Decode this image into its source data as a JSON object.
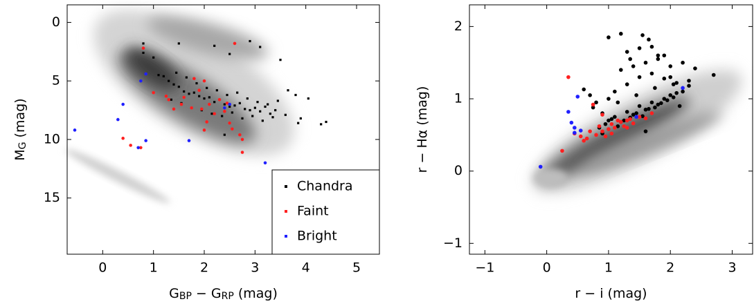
{
  "chart_data": [
    {
      "type": "scatter",
      "xlabel": [
        {
          "text": "G"
        },
        {
          "text": "BP",
          "sub": true
        },
        {
          "text": " − G"
        },
        {
          "text": "RP",
          "sub": true
        },
        {
          "text": " (mag)"
        }
      ],
      "ylabel": [
        {
          "text": "M"
        },
        {
          "text": "G",
          "sub": true
        },
        {
          "text": " (mag)"
        }
      ],
      "xlim": [
        -0.7,
        5.45
      ],
      "ylim": [
        19.8,
        -1.5
      ],
      "xticks": [
        0,
        1,
        2,
        3,
        4,
        5
      ],
      "yticks": [
        0,
        5,
        10,
        15
      ],
      "legend": "lower right",
      "series": [
        {
          "name": "Chandra",
          "color": "#000000",
          "marker": "square",
          "x": [
            0.8,
            0.8,
            1.0,
            1.5,
            2.2,
            2.5,
            2.9,
            3.1,
            3.5,
            3.65,
            3.8,
            3.9,
            3.85,
            4.05,
            4.3,
            4.4,
            1.2,
            1.3,
            1.4,
            1.5,
            1.6,
            1.7,
            1.8,
            1.9,
            2.0,
            2.1,
            2.2,
            2.3,
            2.4,
            2.5,
            2.6,
            2.7,
            2.8,
            2.9,
            3.0,
            3.1,
            3.2,
            3.3,
            3.4,
            1.45,
            1.65,
            1.85,
            2.05,
            2.25,
            2.45,
            2.65,
            2.85,
            3.05,
            3.25,
            3.45,
            1.35,
            1.55,
            1.75,
            1.95,
            2.15,
            2.35,
            2.55,
            2.75,
            2.95,
            3.15,
            3.35,
            1.1,
            3.6,
            2.0,
            2.4
          ],
          "values": [
            1.8,
            2.6,
            3.0,
            1.8,
            2.0,
            2.7,
            1.6,
            2.1,
            3.2,
            5.8,
            6.2,
            8.2,
            8.6,
            6.5,
            8.7,
            8.5,
            4.6,
            5.0,
            5.3,
            5.5,
            5.9,
            6.1,
            6.0,
            6.3,
            6.5,
            6.4,
            6.8,
            6.6,
            7.0,
            7.2,
            7.1,
            6.9,
            7.4,
            7.5,
            7.3,
            7.6,
            7.2,
            7.8,
            7.5,
            4.3,
            4.7,
            5.2,
            5.6,
            5.8,
            6.2,
            6.0,
            6.5,
            6.8,
            7.0,
            6.7,
            6.6,
            6.9,
            7.3,
            7.5,
            7.8,
            8.0,
            7.7,
            8.2,
            8.0,
            8.4,
            8.1,
            4.5,
            7.9,
            9.2,
            9.6
          ]
        },
        {
          "name": "Faint",
          "color": "#ff2020",
          "marker": "circle",
          "x": [
            0.4,
            0.55,
            0.75,
            0.8,
            1.0,
            1.25,
            1.3,
            1.4,
            1.55,
            1.6,
            1.75,
            1.8,
            1.9,
            2.0,
            2.05,
            2.0,
            2.1,
            2.2,
            2.3,
            2.4,
            2.5,
            2.6,
            2.7,
            2.75,
            2.75,
            2.55,
            2.45,
            1.95
          ],
          "values": [
            9.9,
            10.5,
            10.7,
            2.2,
            6.0,
            6.3,
            6.6,
            7.4,
            7.0,
            6.4,
            7.3,
            4.8,
            5.8,
            5.0,
            8.5,
            9.2,
            7.0,
            7.8,
            6.6,
            7.6,
            8.6,
            1.8,
            9.6,
            11.1,
            10.0,
            9.1,
            6.9,
            7.4
          ]
        },
        {
          "name": "Bright",
          "color": "#2020ff",
          "marker": "circle",
          "x": [
            -0.55,
            0.3,
            0.4,
            0.75,
            0.85,
            0.85,
            0.7,
            1.7,
            3.2,
            2.4,
            2.5
          ],
          "values": [
            9.2,
            8.3,
            7.0,
            5.0,
            4.4,
            10.1,
            10.7,
            10.1,
            12.0,
            7.3,
            7.0
          ]
        }
      ]
    },
    {
      "type": "scatter",
      "xlabel": [
        {
          "text": "r − i (mag)"
        }
      ],
      "ylabel": [
        {
          "text": "r − Hα (mag)"
        }
      ],
      "xlim": [
        -1.25,
        3.33
      ],
      "ylim": [
        -1.15,
        2.3
      ],
      "xticks": [
        {
          "value": -1,
          "label": "−1"
        },
        0,
        1,
        2,
        3
      ],
      "yticks": [
        {
          "value": -1,
          "label": "−1"
        },
        0,
        1,
        2
      ],
      "series": [
        {
          "color": "#000000",
          "marker": "circle",
          "x": [
            1.0,
            1.2,
            1.35,
            1.55,
            1.65,
            1.8,
            2.0,
            2.2,
            2.4,
            2.7,
            0.6,
            0.7,
            0.8,
            0.9,
            1.0,
            1.1,
            1.2,
            1.3,
            1.4,
            1.5,
            1.6,
            1.7,
            1.8,
            1.9,
            2.0,
            2.1,
            2.2,
            0.85,
            0.95,
            1.05,
            1.15,
            1.25,
            1.35,
            1.45,
            1.55,
            1.65,
            1.75,
            1.85,
            1.95,
            2.05,
            2.15,
            2.3,
            1.1,
            1.3,
            1.5,
            1.7,
            1.9,
            2.1,
            2.3,
            0.75,
            1.0,
            1.2,
            1.4,
            1.6,
            1.8,
            2.0,
            1.3,
            1.5,
            1.7,
            1.9,
            1.15,
            1.45,
            1.75,
            2.05,
            0.9,
            1.6
          ],
          "values": [
            1.85,
            1.9,
            1.55,
            1.88,
            1.82,
            1.6,
            1.45,
            1.5,
            1.42,
            1.33,
            1.13,
            1.05,
            0.95,
            0.8,
            0.7,
            0.75,
            0.68,
            0.82,
            0.78,
            0.9,
            0.85,
            0.95,
            0.92,
            1.0,
            1.05,
            1.08,
            1.1,
            0.6,
            0.65,
            0.72,
            0.62,
            0.7,
            0.74,
            0.8,
            0.76,
            0.86,
            0.88,
            0.94,
            0.98,
            1.02,
            0.9,
            1.25,
            1.1,
            1.2,
            1.3,
            1.35,
            1.28,
            1.22,
            1.18,
            0.88,
            1.0,
            1.4,
            1.45,
            1.5,
            1.55,
            1.3,
            1.65,
            1.7,
            1.72,
            1.6,
            0.95,
            1.05,
            1.15,
            1.2,
            0.52,
            0.55
          ]
        },
        {
          "color": "#ff2020",
          "marker": "circle",
          "x": [
            0.25,
            0.35,
            0.45,
            0.55,
            0.6,
            0.65,
            0.7,
            0.8,
            0.85,
            0.9,
            0.95,
            1.0,
            1.05,
            1.1,
            1.15,
            1.2,
            1.25,
            1.3,
            1.35,
            1.4,
            1.5,
            1.6,
            1.7,
            0.75,
            0.9,
            1.05,
            1.3
          ],
          "values": [
            0.28,
            1.3,
            0.52,
            0.48,
            0.42,
            0.45,
            0.55,
            0.5,
            0.62,
            0.55,
            0.48,
            0.58,
            0.65,
            0.6,
            0.7,
            0.68,
            0.62,
            0.7,
            0.72,
            0.66,
            0.75,
            0.73,
            0.8,
            0.92,
            0.78,
            0.52,
            0.6
          ]
        },
        {
          "color": "#2020ff",
          "marker": "circle",
          "x": [
            -0.1,
            0.35,
            0.4,
            0.45,
            0.5,
            0.45,
            0.55,
            1.45,
            2.2
          ],
          "values": [
            0.06,
            0.82,
            0.67,
            0.6,
            1.03,
            0.53,
            0.56,
            0.75,
            1.15
          ]
        }
      ]
    }
  ]
}
